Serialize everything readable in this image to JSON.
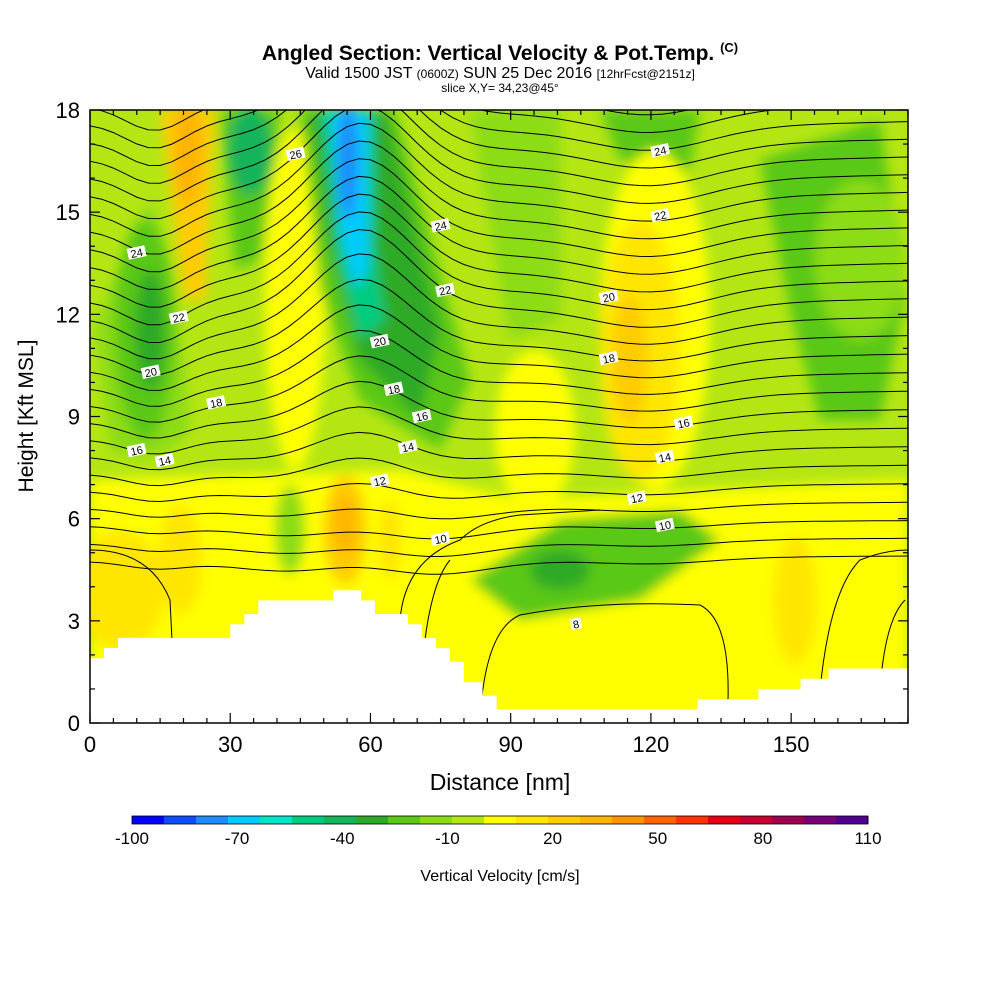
{
  "title": {
    "main": "Angled Section: Vertical Velocity & Pot.Temp.",
    "main_unit": "(C)",
    "valid_prefix": "Valid 1500 JST",
    "valid_utc": "(0600Z)",
    "valid_date": "SUN 25 Dec 2016",
    "forecast": "[12hrFcst@2151z]",
    "slice": "slice X,Y= 34,23@45°"
  },
  "chart_data": {
    "type": "heatmap",
    "xlabel": "Distance [nm]",
    "ylabel": "Height [Kft MSL]",
    "xlim": [
      0,
      175
    ],
    "ylim": [
      0,
      18
    ],
    "x_ticks": [
      0,
      30,
      60,
      90,
      120,
      150
    ],
    "y_ticks": [
      0,
      3,
      6,
      9,
      12,
      15,
      18
    ],
    "colorbar": {
      "label": "Vertical Velocity [cm/s]",
      "min": -100,
      "max": 110,
      "step": 10,
      "tick_labels": [
        "-100",
        "-70",
        "-40",
        "-10",
        "20",
        "50",
        "80",
        "110"
      ],
      "colors": [
        "#0000ff",
        "#0f4bff",
        "#1e8cff",
        "#00ccff",
        "#00e5c8",
        "#00cc80",
        "#14b45a",
        "#2daa28",
        "#5ac814",
        "#8cdc14",
        "#b4e614",
        "#ffff00",
        "#ffe600",
        "#ffcc00",
        "#ffb400",
        "#ff9600",
        "#ff6400",
        "#ff3200",
        "#e60014",
        "#c80032",
        "#a00050",
        "#780078",
        "#500090"
      ]
    },
    "isentrope_labels": [
      {
        "label": "26",
        "x": 44,
        "y": 16.7
      },
      {
        "label": "24",
        "x": 10,
        "y": 13.8
      },
      {
        "label": "24",
        "x": 75,
        "y": 14.6
      },
      {
        "label": "24",
        "x": 122,
        "y": 16.8
      },
      {
        "label": "22",
        "x": 19,
        "y": 11.9
      },
      {
        "label": "22",
        "x": 76,
        "y": 12.7
      },
      {
        "label": "22",
        "x": 122,
        "y": 14.9
      },
      {
        "label": "20",
        "x": 13,
        "y": 10.3
      },
      {
        "label": "20",
        "x": 62,
        "y": 11.2
      },
      {
        "label": "20",
        "x": 111,
        "y": 12.5
      },
      {
        "label": "18",
        "x": 27,
        "y": 9.4
      },
      {
        "label": "18",
        "x": 65,
        "y": 9.8
      },
      {
        "label": "18",
        "x": 111,
        "y": 10.7
      },
      {
        "label": "16",
        "x": 10,
        "y": 8.0
      },
      {
        "label": "16",
        "x": 71,
        "y": 9.0
      },
      {
        "label": "16",
        "x": 127,
        "y": 8.8
      },
      {
        "label": "14",
        "x": 16,
        "y": 7.7
      },
      {
        "label": "14",
        "x": 68,
        "y": 8.1
      },
      {
        "label": "14",
        "x": 123,
        "y": 7.8
      },
      {
        "label": "12",
        "x": 62,
        "y": 7.1
      },
      {
        "label": "12",
        "x": 117,
        "y": 6.6
      },
      {
        "label": "10",
        "x": 75,
        "y": 5.4
      },
      {
        "label": "10",
        "x": 123,
        "y": 5.8
      },
      {
        "label": "8",
        "x": 104,
        "y": 2.9
      }
    ],
    "terrain_kft": [
      [
        0,
        1.9
      ],
      [
        3,
        1.9
      ],
      [
        3,
        2.2
      ],
      [
        6,
        2.2
      ],
      [
        6,
        2.5
      ],
      [
        30,
        2.5
      ],
      [
        30,
        2.9
      ],
      [
        33,
        2.9
      ],
      [
        33,
        3.2
      ],
      [
        36,
        3.2
      ],
      [
        36,
        3.6
      ],
      [
        52,
        3.6
      ],
      [
        52,
        3.9
      ],
      [
        58,
        3.9
      ],
      [
        58,
        3.6
      ],
      [
        61,
        3.6
      ],
      [
        61,
        3.2
      ],
      [
        68,
        3.2
      ],
      [
        68,
        2.9
      ],
      [
        71,
        2.9
      ],
      [
        71,
        2.5
      ],
      [
        74,
        2.5
      ],
      [
        74,
        2.2
      ],
      [
        77,
        2.2
      ],
      [
        77,
        1.8
      ],
      [
        80,
        1.8
      ],
      [
        80,
        1.2
      ],
      [
        84,
        1.2
      ],
      [
        84,
        0.8
      ],
      [
        87,
        0.8
      ],
      [
        87,
        0.4
      ],
      [
        130,
        0.4
      ],
      [
        130,
        0.7
      ],
      [
        143,
        0.7
      ],
      [
        143,
        1.0
      ],
      [
        152,
        1.0
      ],
      [
        152,
        1.3
      ],
      [
        158,
        1.3
      ],
      [
        158,
        1.6
      ],
      [
        175,
        1.6
      ]
    ]
  }
}
